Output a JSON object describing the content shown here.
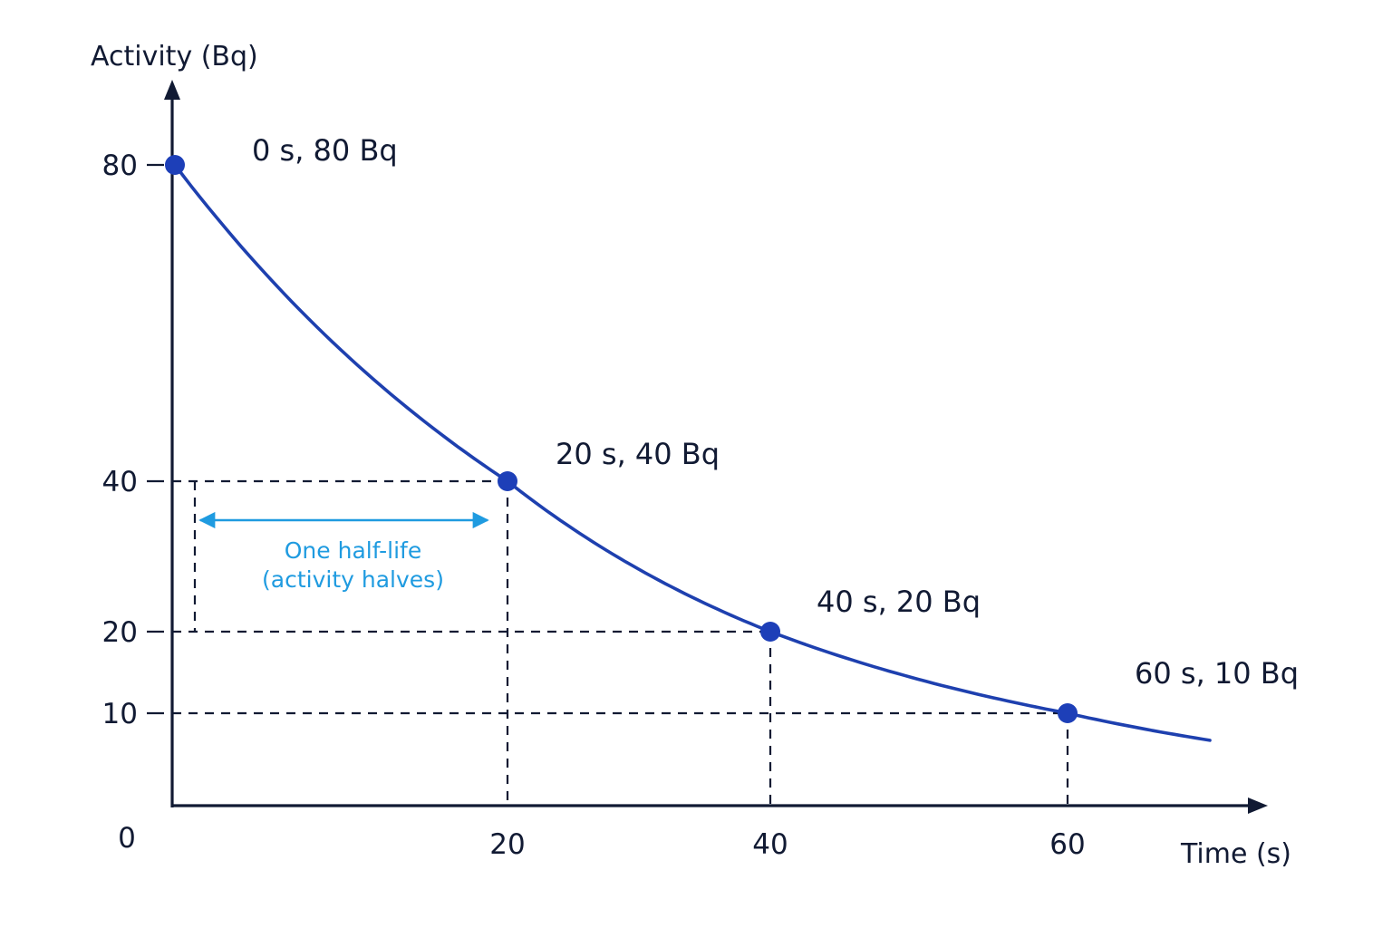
{
  "chart_data": {
    "type": "line",
    "xlabel": "Time (s)",
    "ylabel": "Activity (Bq)",
    "origin_label": "0",
    "x_ticks": [
      20,
      40,
      60
    ],
    "y_ticks": [
      10,
      20,
      40,
      80
    ],
    "xlim": [
      0,
      72
    ],
    "ylim": [
      0,
      88
    ],
    "grid": false,
    "legend": "none",
    "series": [
      {
        "x": [
          0,
          20,
          40,
          60
        ],
        "y": [
          80,
          40,
          20,
          10
        ],
        "curve_extends_to_x": 70
      }
    ],
    "data_labels": [
      "0 s, 80 Bq",
      "20 s, 40 Bq",
      "40 s, 20 Bq",
      "60 s, 10 Bq"
    ],
    "reference_lines": {
      "y_values": [
        40,
        20,
        10
      ],
      "x_values": [
        20,
        40,
        60
      ]
    },
    "annotations": [
      {
        "lines": [
          "One half-life",
          "(activity halves)"
        ],
        "x_range": [
          0,
          20
        ],
        "box_y_range": [
          20,
          40
        ]
      }
    ],
    "colors": {
      "curve": "#1e40af",
      "point": "#1d3fb8",
      "axis": "#111a33",
      "annotation": "#1f9be0"
    }
  }
}
